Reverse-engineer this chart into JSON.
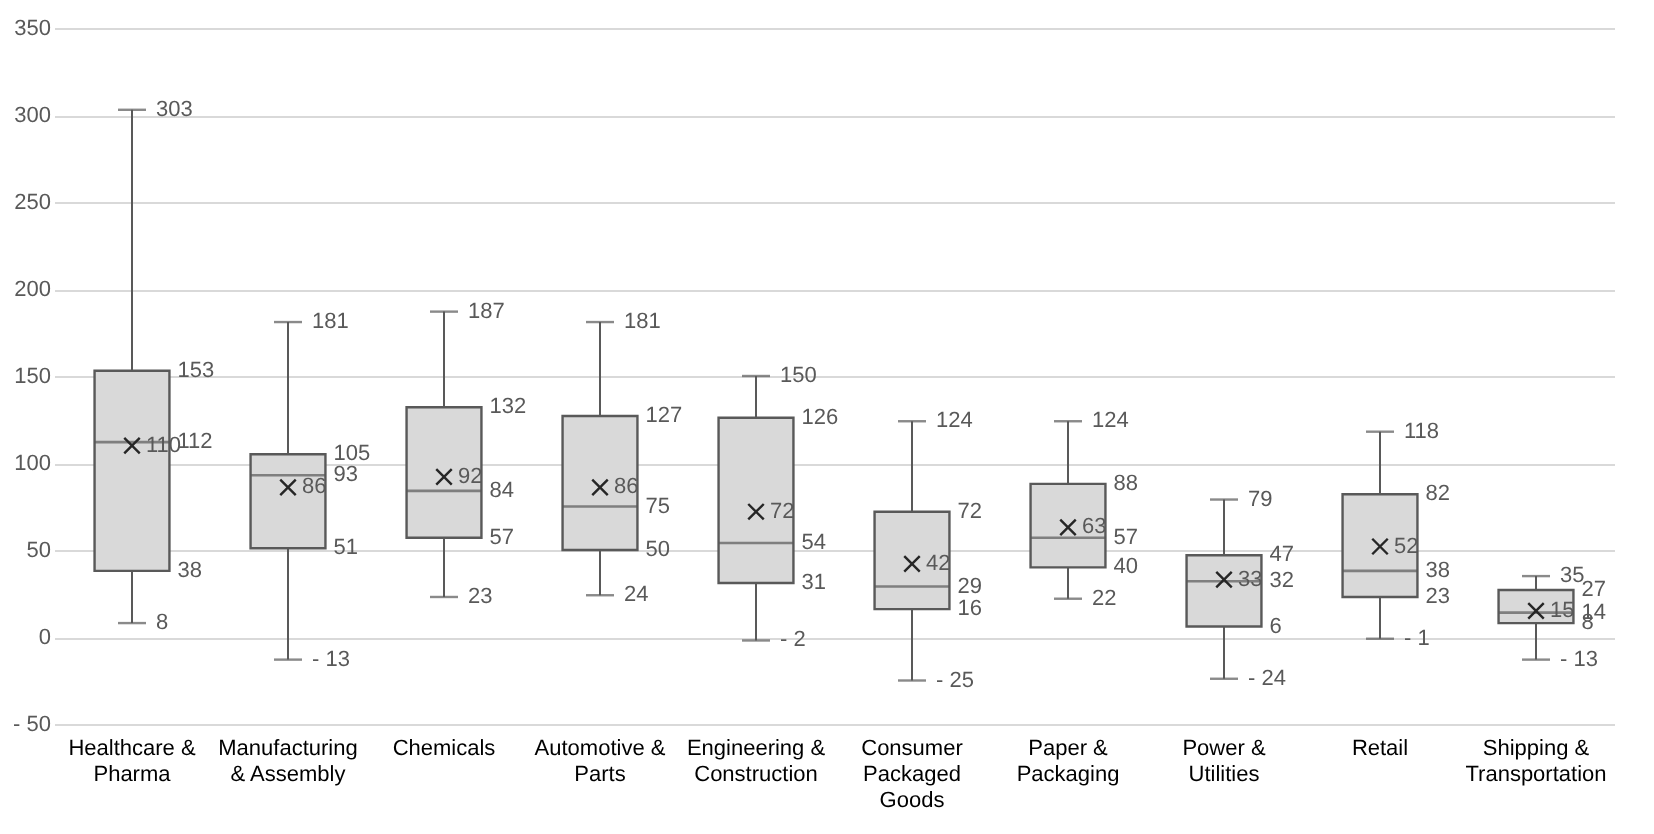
{
  "chart_data": {
    "type": "box",
    "categories": [
      "Healthcare & Pharma",
      "Manufacturing & Assembly",
      "Chemicals",
      "Automotive & Parts",
      "Engineering & Construction",
      "Consumer Packaged Goods",
      "Paper & Packaging",
      "Power & Utilities",
      "Retail",
      "Shipping & Transportation"
    ],
    "boxes": [
      {
        "low": 8,
        "q1": 38,
        "median": 112,
        "q3": 153,
        "high": 303,
        "mean": 110
      },
      {
        "low": -13,
        "q1": 51,
        "median": 93,
        "q3": 105,
        "high": 181,
        "mean": 86
      },
      {
        "low": 23,
        "q1": 57,
        "median": 84,
        "q3": 132,
        "high": 187,
        "mean": 92
      },
      {
        "low": 24,
        "q1": 50,
        "median": 75,
        "q3": 127,
        "high": 181,
        "mean": 86
      },
      {
        "low": -2,
        "q1": 31,
        "median": 54,
        "q3": 126,
        "high": 150,
        "mean": 72
      },
      {
        "low": -25,
        "q1": 16,
        "median": 29,
        "q3": 72,
        "high": 124,
        "mean": 42
      },
      {
        "low": 22,
        "q1": 40,
        "median": 57,
        "q3": 88,
        "high": 124,
        "mean": 63
      },
      {
        "low": -24,
        "q1": 6,
        "median": 32,
        "q3": 47,
        "high": 79,
        "mean": 33
      },
      {
        "low": -1,
        "q1": 23,
        "median": 38,
        "q3": 82,
        "high": 118,
        "mean": 52
      },
      {
        "low": -13,
        "q1": 8,
        "median": 14,
        "q3": 27,
        "high": 35,
        "mean": 15
      }
    ],
    "color": "#d9d9d9",
    "ylim": [
      -50,
      350
    ],
    "yticks": [
      {
        "value": -50,
        "label": "- 50"
      },
      0,
      50,
      100,
      150,
      200,
      250,
      300,
      350
    ],
    "grid": "y",
    "annotations": [
      {
        "text": "8",
        "x": "Healthcare & Pharma",
        "y": 8
      },
      {
        "text": "38",
        "x": "Healthcare & Pharma",
        "y": 38
      },
      {
        "text": "112",
        "x": "Healthcare & Pharma",
        "y": 112
      },
      {
        "text": "153",
        "x": "Healthcare & Pharma",
        "y": 153
      },
      {
        "text": "303",
        "x": "Healthcare & Pharma",
        "y": 303
      },
      {
        "text": "110",
        "x": "Healthcare & Pharma",
        "y": 110
      },
      {
        "text": "- 13",
        "x": "Manufacturing & Assembly",
        "y": -13
      },
      {
        "text": "51",
        "x": "Manufacturing & Assembly",
        "y": 51
      },
      {
        "text": "93",
        "x": "Manufacturing & Assembly",
        "y": 93
      },
      {
        "text": "105",
        "x": "Manufacturing & Assembly",
        "y": 105
      },
      {
        "text": "181",
        "x": "Manufacturing & Assembly",
        "y": 181
      },
      {
        "text": "86",
        "x": "Manufacturing & Assembly",
        "y": 86
      },
      {
        "text": "23",
        "x": "Chemicals",
        "y": 23
      },
      {
        "text": "57",
        "x": "Chemicals",
        "y": 57
      },
      {
        "text": "84",
        "x": "Chemicals",
        "y": 84
      },
      {
        "text": "132",
        "x": "Chemicals",
        "y": 132
      },
      {
        "text": "187",
        "x": "Chemicals",
        "y": 187
      },
      {
        "text": "92",
        "x": "Chemicals",
        "y": 92
      },
      {
        "text": "24",
        "x": "Automotive & Parts",
        "y": 24
      },
      {
        "text": "50",
        "x": "Automotive & Parts",
        "y": 50
      },
      {
        "text": "75",
        "x": "Automotive & Parts",
        "y": 75
      },
      {
        "text": "127",
        "x": "Automotive & Parts",
        "y": 127
      },
      {
        "text": "181",
        "x": "Automotive & Parts",
        "y": 181
      },
      {
        "text": "86",
        "x": "Automotive & Parts",
        "y": 86
      },
      {
        "text": "- 2",
        "x": "Engineering & Construction",
        "y": -2
      },
      {
        "text": "31",
        "x": "Engineering & Construction",
        "y": 31
      },
      {
        "text": "54",
        "x": "Engineering & Construction",
        "y": 54
      },
      {
        "text": "126",
        "x": "Engineering & Construction",
        "y": 126
      },
      {
        "text": "150",
        "x": "Engineering & Construction",
        "y": 150
      },
      {
        "text": "72",
        "x": "Engineering & Construction",
        "y": 72
      },
      {
        "text": "- 25",
        "x": "Consumer Packaged Goods",
        "y": -25
      },
      {
        "text": "16",
        "x": "Consumer Packaged Goods",
        "y": 16
      },
      {
        "text": "29",
        "x": "Consumer Packaged Goods",
        "y": 29
      },
      {
        "text": "72",
        "x": "Consumer Packaged Goods",
        "y": 72
      },
      {
        "text": "124",
        "x": "Consumer Packaged Goods",
        "y": 124
      },
      {
        "text": "42",
        "x": "Consumer Packaged Goods",
        "y": 42
      },
      {
        "text": "22",
        "x": "Paper & Packaging",
        "y": 22
      },
      {
        "text": "40",
        "x": "Paper & Packaging",
        "y": 40
      },
      {
        "text": "57",
        "x": "Paper & Packaging",
        "y": 57
      },
      {
        "text": "88",
        "x": "Paper & Packaging",
        "y": 88
      },
      {
        "text": "124",
        "x": "Paper & Packaging",
        "y": 124
      },
      {
        "text": "63",
        "x": "Paper & Packaging",
        "y": 63
      },
      {
        "text": "- 24",
        "x": "Power & Utilities",
        "y": -24
      },
      {
        "text": "6",
        "x": "Power & Utilities",
        "y": 6
      },
      {
        "text": "32",
        "x": "Power & Utilities",
        "y": 32
      },
      {
        "text": "47",
        "x": "Power & Utilities",
        "y": 47
      },
      {
        "text": "79",
        "x": "Power & Utilities",
        "y": 79
      },
      {
        "text": "33",
        "x": "Power & Utilities",
        "y": 33
      },
      {
        "text": "- 1",
        "x": "Retail",
        "y": -1
      },
      {
        "text": "23",
        "x": "Retail",
        "y": 23
      },
      {
        "text": "38",
        "x": "Retail",
        "y": 38
      },
      {
        "text": "82",
        "x": "Retail",
        "y": 82
      },
      {
        "text": "118",
        "x": "Retail",
        "y": 118
      },
      {
        "text": "52",
        "x": "Retail",
        "y": 52
      },
      {
        "text": "- 13",
        "x": "Shipping & Transportation",
        "y": -13
      },
      {
        "text": "8",
        "x": "Shipping & Transportation",
        "y": 8
      },
      {
        "text": "14",
        "x": "Shipping & Transportation",
        "y": 14
      },
      {
        "text": "27",
        "x": "Shipping & Transportation",
        "y": 27
      },
      {
        "text": "35",
        "x": "Shipping & Transportation",
        "y": 35
      },
      {
        "text": "15",
        "x": "Shipping & Transportation",
        "y": 15
      }
    ]
  }
}
